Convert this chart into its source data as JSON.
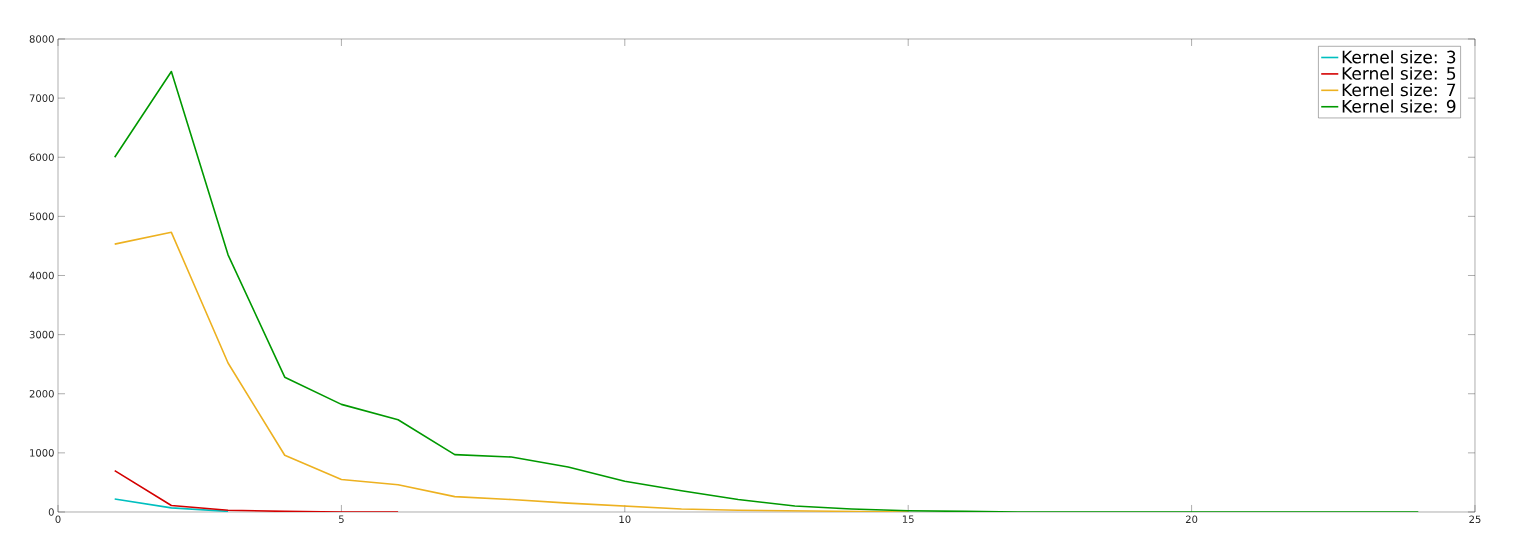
{
  "chart_data": {
    "type": "line",
    "x": [
      1,
      2,
      3,
      4,
      5,
      6,
      7,
      8,
      9,
      10,
      11,
      12,
      13,
      14,
      15,
      16,
      17,
      18,
      19,
      20,
      21,
      22,
      23,
      24
    ],
    "series": [
      {
        "name": "Kernel size: 3",
        "color": "#00bfbf",
        "x": [
          1,
          2,
          3
        ],
        "values": [
          220,
          70,
          10
        ]
      },
      {
        "name": "Kernel size: 5",
        "color": "#d40000",
        "x": [
          1,
          2,
          3,
          4,
          5,
          6
        ],
        "values": [
          700,
          110,
          30,
          10,
          0,
          0
        ]
      },
      {
        "name": "Kernel size: 7",
        "color": "#edb120",
        "x": [
          1,
          2,
          3,
          4,
          5,
          6,
          7,
          8,
          9,
          10,
          11,
          12,
          13,
          14,
          15
        ],
        "values": [
          4530,
          4730,
          2520,
          960,
          550,
          460,
          260,
          210,
          150,
          100,
          50,
          30,
          20,
          10,
          0
        ]
      },
      {
        "name": "Kernel size: 9",
        "color": "#009900",
        "values": [
          6000,
          7450,
          4350,
          2280,
          1820,
          1560,
          970,
          930,
          760,
          520,
          360,
          210,
          100,
          50,
          20,
          10,
          0,
          0,
          0,
          0,
          0,
          0,
          0,
          0
        ]
      }
    ],
    "xlim": [
      0,
      25
    ],
    "xticks": [
      0,
      5,
      10,
      15,
      20,
      25
    ],
    "ylim": [
      0,
      8000
    ],
    "yticks": [
      0,
      1000,
      2000,
      3000,
      4000,
      5000,
      6000,
      7000,
      8000
    ],
    "grid": false,
    "legend": "top right",
    "marker": "none",
    "line_style": "solid"
  }
}
